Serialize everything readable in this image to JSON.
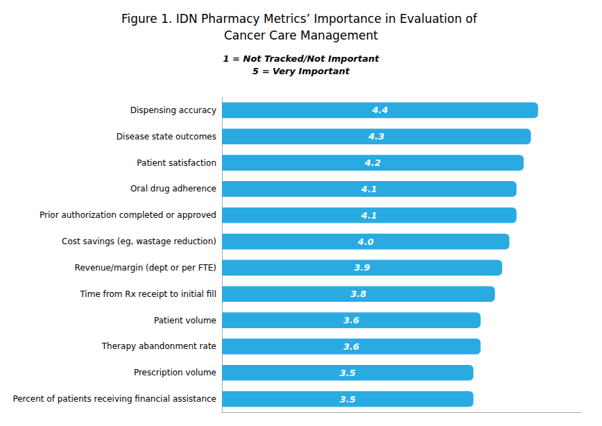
{
  "chart_data": {
    "type": "bar",
    "orientation": "horizontal",
    "title": "Figure 1. IDN Pharmacy Metrics’ Importance in Evaluation of Cancer Care Management",
    "subtitle": "1 = Not Tracked/Not Important\n5 = Very Important",
    "categories": [
      "Percent of patients receiving financial assistance",
      "Prescription volume",
      "Therapy abandonment rate",
      "Patient volume",
      "Time from Rx receipt to initial fill",
      "Revenue/margin (dept or per FTE)",
      "Cost savings (eg, wastage reduction)",
      "Prior authorization completed or approved",
      "Oral drug adherence",
      "Patient satisfaction",
      "Disease state outcomes",
      "Dispensing accuracy"
    ],
    "values": [
      3.5,
      3.5,
      3.6,
      3.6,
      3.8,
      3.9,
      4.0,
      4.1,
      4.1,
      4.2,
      4.3,
      4.4
    ],
    "value_labels": [
      "3.5",
      "3.5",
      "3.6",
      "3.6",
      "3.8",
      "3.9",
      "4.0",
      "4.1",
      "4.1",
      "4.2",
      "4.3",
      "4.4"
    ],
    "color": "#29ABE2",
    "xlim": [
      0,
      5.0
    ],
    "data_labels": true,
    "tick_labels": "y",
    "grid": false
  }
}
